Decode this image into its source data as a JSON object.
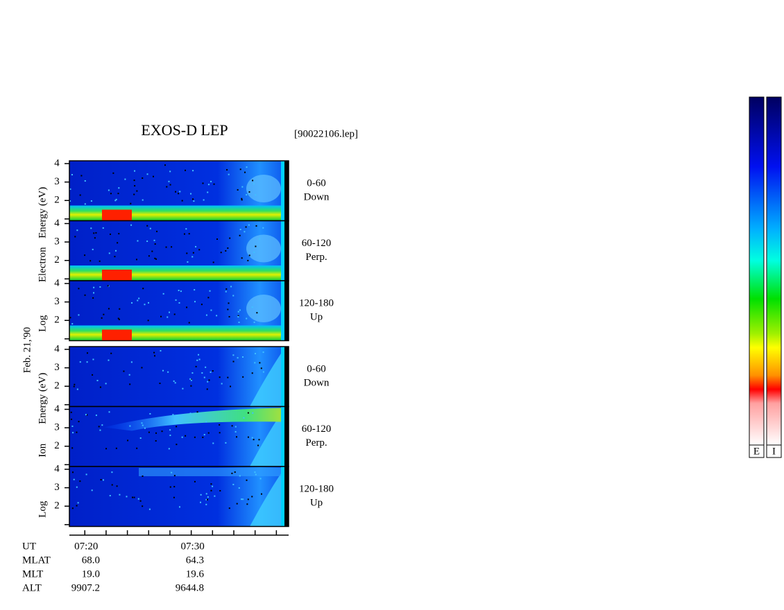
{
  "title": "EXOS-D LEP",
  "file": "[90022106.lep]",
  "date": "Feb. 21,'90",
  "ylim": [
    0.9,
    4.15
  ],
  "yticks": [
    {
      "value": 1,
      "label": null
    },
    2,
    3,
    4
  ],
  "xlim": [
    18.55,
    39.15
  ],
  "xticks": [
    {
      "value": 20,
      "label": "07:20"
    },
    {
      "value": 22,
      "label": null
    },
    {
      "value": 24,
      "label": null
    },
    {
      "value": 26,
      "label": null
    },
    {
      "value": 28,
      "label": null
    },
    {
      "value": 30,
      "label": "07:30"
    },
    {
      "value": 32,
      "label": null
    },
    {
      "value": 34,
      "label": null
    },
    {
      "value": 36,
      "label": null
    },
    {
      "value": 38,
      "label": null
    }
  ],
  "groups": [
    {
      "label": [
        "Log",
        "Electron",
        "Energy (eV)"
      ],
      "kind": "electron",
      "panels": [
        {
          "angle": "0-60",
          "dir": "Down"
        },
        {
          "angle": "60-120",
          "dir": "Perp."
        },
        {
          "angle": "120-180",
          "dir": "Up"
        }
      ]
    },
    {
      "label": [
        "Log",
        "Ion",
        "Energy (eV)"
      ],
      "kind": "ion",
      "panels": [
        {
          "angle": "0-60",
          "dir": "Down"
        },
        {
          "angle": "60-120",
          "dir": "Perp."
        },
        {
          "angle": "120-180",
          "dir": "Up"
        }
      ]
    }
  ],
  "ephemeris": {
    "labels": [
      "UT",
      "MLAT",
      "MLT",
      "ALT"
    ],
    "columns": [
      [
        "68.0",
        "19.0",
        "9907.2"
      ],
      [
        "64.3",
        "19.6",
        "9644.8"
      ]
    ]
  },
  "colorbars": [
    "E",
    "I"
  ]
}
